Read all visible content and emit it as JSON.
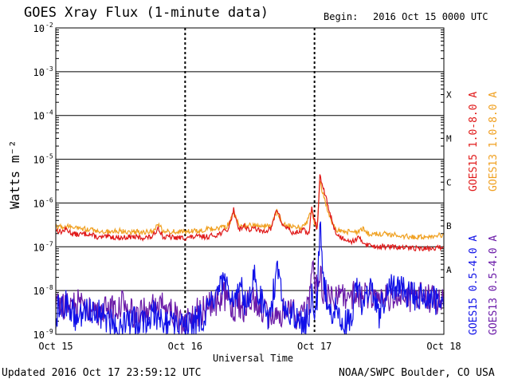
{
  "header": {
    "title": "GOES Xray Flux (1-minute data)",
    "begin_label": "Begin:",
    "begin_value": "2016 Oct 15 0000 UTC"
  },
  "footer": {
    "updated": "Updated 2016 Oct 17 23:59:12 UTC",
    "credit": "NOAA/SWPC Boulder, CO USA"
  },
  "chart_data": {
    "type": "line",
    "title": "GOES Xray Flux (1-minute data)",
    "xlabel": "Universal Time",
    "ylabel": "Watts m⁻²",
    "y_scale": "log",
    "ylim": [
      1e-09,
      0.01
    ],
    "xlim_hours": [
      0,
      72
    ],
    "x_tick_labels": [
      "Oct 15",
      "Oct 16",
      "Oct 17",
      "Oct 18"
    ],
    "y_tick_labels": [
      {
        "base": "10",
        "exp": "-2",
        "value": 0.01
      },
      {
        "base": "10",
        "exp": "-3",
        "value": 0.001
      },
      {
        "base": "10",
        "exp": "-4",
        "value": 0.0001
      },
      {
        "base": "10",
        "exp": "-5",
        "value": 1e-05
      },
      {
        "base": "10",
        "exp": "-6",
        "value": 1e-06
      },
      {
        "base": "10",
        "exp": "-7",
        "value": 1e-07
      },
      {
        "base": "10",
        "exp": "-8",
        "value": 1e-08
      },
      {
        "base": "10",
        "exp": "-9",
        "value": 1e-09
      }
    ],
    "flare_classes": [
      {
        "label": "X",
        "value": 0.0003
      },
      {
        "label": "M",
        "value": 3e-05
      },
      {
        "label": "C",
        "value": 3e-06
      },
      {
        "label": "B",
        "value": 3e-07
      },
      {
        "label": "A",
        "value": 3e-08
      }
    ],
    "grid": true,
    "legend_placement": "right, vertical",
    "series": [
      {
        "name": "GOES15 1.0-8.0 A",
        "color": "#e01818",
        "x_hours": [
          0,
          1,
          2,
          3,
          4,
          6,
          8,
          10,
          12,
          14,
          16,
          18,
          19,
          20,
          21,
          22,
          24,
          26,
          28,
          30,
          32,
          33,
          34,
          35,
          36,
          37,
          38,
          40,
          41,
          42,
          43,
          44,
          45,
          46,
          47,
          47.5,
          48,
          48.5,
          49,
          50,
          51,
          52,
          53,
          54,
          55,
          56,
          57,
          58,
          60,
          62,
          64,
          66,
          68,
          70,
          72
        ],
        "values": [
          2.4e-07,
          2.2e-07,
          2.5e-07,
          2e-07,
          1.9e-07,
          2e-07,
          1.6e-07,
          1.7e-07,
          1.6e-07,
          1.7e-07,
          1.6e-07,
          1.7e-07,
          2.8e-07,
          1.6e-07,
          1.7e-07,
          1.6e-07,
          1.6e-07,
          1.7e-07,
          1.7e-07,
          1.9e-07,
          2.5e-07,
          7e-07,
          2.5e-07,
          3e-07,
          2.4e-07,
          2.7e-07,
          2.2e-07,
          2.6e-07,
          7.5e-07,
          3.2e-07,
          2.7e-07,
          2e-07,
          2.2e-07,
          2.4e-07,
          2e-07,
          8e-07,
          4e-07,
          2.5e-07,
          4e-06,
          1.5e-06,
          5e-07,
          2e-07,
          1.6e-07,
          1.5e-07,
          1.3e-07,
          1.6e-07,
          1.3e-07,
          1.1e-07,
          1e-07,
          1e-07,
          9.5e-08,
          9.5e-08,
          9e-08,
          9e-08,
          1e-07
        ]
      },
      {
        "name": "GOES13 1.0-8.0 A",
        "color": "#f0a020",
        "x_hours": [
          0,
          2,
          4,
          6,
          8,
          10,
          12,
          14,
          16,
          18,
          19,
          20,
          22,
          24,
          26,
          28,
          30,
          32,
          33,
          34,
          36,
          38,
          40,
          41,
          42,
          44,
          46,
          47.5,
          48,
          48.5,
          49,
          50,
          51,
          52,
          54,
          56,
          57,
          58,
          60,
          62,
          64,
          66,
          68,
          70,
          72
        ],
        "values": [
          2.8e-07,
          2.9e-07,
          2.7e-07,
          2.5e-07,
          2.3e-07,
          2.2e-07,
          2.3e-07,
          2.2e-07,
          2.2e-07,
          2.3e-07,
          3.3e-07,
          2.2e-07,
          2.3e-07,
          2.2e-07,
          2.3e-07,
          2.5e-07,
          2.6e-07,
          3e-07,
          6e-07,
          3e-07,
          3.1e-07,
          2.9e-07,
          3e-07,
          6.5e-07,
          3.5e-07,
          2.8e-07,
          2.8e-07,
          6.5e-07,
          3.5e-07,
          2.9e-07,
          3e-06,
          1e-06,
          4e-07,
          2.5e-07,
          2.2e-07,
          2.2e-07,
          2.5e-07,
          2e-07,
          2e-07,
          1.9e-07,
          1.8e-07,
          1.7e-07,
          1.7e-07,
          1.8e-07,
          1.9e-07
        ]
      },
      {
        "name": "GOES15 0.5-4.0 A",
        "color": "#1010e8",
        "x_hours": [
          0,
          2,
          4,
          6,
          8,
          10,
          12,
          14,
          16,
          18,
          20,
          22,
          24,
          26,
          28,
          30,
          31,
          32,
          33,
          34,
          35,
          36,
          37,
          38,
          39,
          40,
          41,
          42,
          43,
          44,
          45,
          46,
          47,
          47.5,
          48,
          48.5,
          49,
          49.5,
          50,
          51,
          52,
          53,
          54,
          55,
          56,
          57,
          58,
          59,
          60,
          62,
          64,
          66,
          68,
          70,
          72
        ],
        "values": [
          3e-09,
          5e-09,
          2e-09,
          4e-09,
          3e-09,
          2e-09,
          1.5e-09,
          2e-09,
          2e-09,
          3e-09,
          2e-09,
          1.5e-09,
          1.5e-09,
          2e-09,
          3e-09,
          8e-09,
          1.5e-08,
          8e-09,
          5e-09,
          1.4e-08,
          6e-09,
          1e-08,
          2e-08,
          7e-09,
          2e-09,
          4e-09,
          3e-08,
          8e-09,
          3e-09,
          3e-09,
          2e-09,
          1.5e-09,
          3e-09,
          1.5e-08,
          3e-09,
          5e-09,
          3e-07,
          4e-08,
          1e-08,
          4e-09,
          3e-09,
          2e-09,
          2e-09,
          3e-09,
          1.5e-08,
          4e-09,
          1.2e-08,
          6e-09,
          3e-09,
          1.2e-08,
          1e-08,
          8e-09,
          7e-09,
          6e-09,
          4e-09
        ]
      },
      {
        "name": "GOES13 0.5-4.0 A",
        "color": "#6a1aa8",
        "x_hours": [
          0,
          2,
          4,
          6,
          8,
          10,
          12,
          14,
          16,
          18,
          20,
          22,
          24,
          26,
          28,
          30,
          31,
          32,
          33,
          34,
          35,
          36,
          37,
          38,
          39,
          40,
          41,
          42,
          43,
          44,
          45,
          46,
          47,
          47.5,
          48,
          48.5,
          49,
          49.5,
          50,
          51,
          52,
          53,
          54,
          55,
          56,
          57,
          58,
          59,
          60,
          62,
          64,
          66,
          68,
          70,
          72
        ],
        "values": [
          5e-09,
          4e-09,
          5e-09,
          4e-09,
          3e-09,
          4e-09,
          5e-09,
          3e-09,
          3e-09,
          4e-09,
          5e-09,
          3e-09,
          2e-09,
          3e-09,
          4e-09,
          6e-09,
          8e-09,
          5e-09,
          4e-09,
          5e-09,
          4e-09,
          5e-09,
          6e-09,
          4e-09,
          3e-09,
          3e-09,
          4e-09,
          3e-09,
          4e-09,
          3e-09,
          2e-09,
          3e-09,
          4e-09,
          3e-08,
          1.5e-08,
          1e-08,
          2e-08,
          1.2e-08,
          8e-09,
          6e-09,
          8e-09,
          7e-09,
          6e-09,
          8e-09,
          1e-08,
          7e-09,
          8e-09,
          6e-09,
          6e-09,
          7e-09,
          8e-09,
          7e-09,
          7e-09,
          6e-09,
          5e-09
        ]
      }
    ]
  }
}
